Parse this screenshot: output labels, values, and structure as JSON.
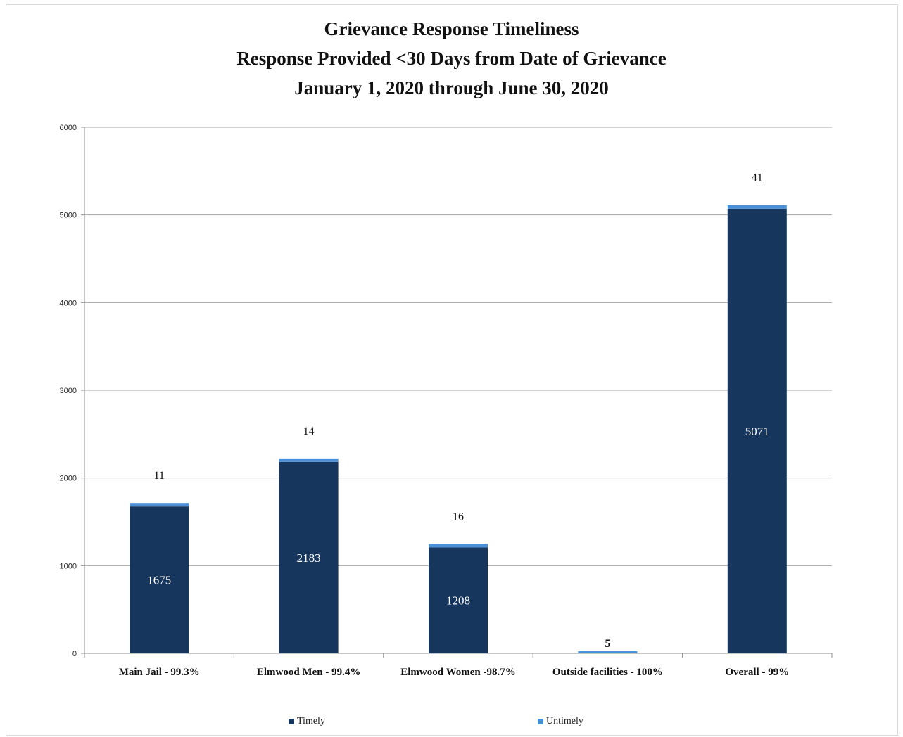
{
  "chart_data": {
    "type": "bar",
    "stacked": true,
    "title_lines": [
      "Grievance Response Timeliness",
      "Response Provided <30 Days from Date of Grievance",
      "January 1, 2020 through June 30, 2020"
    ],
    "categories": [
      "Main Jail - 99.3%",
      "Elmwood Men - 99.4%",
      "Elmwood Women -98.7%",
      "Outside facilities - 100%",
      "Overall - 99%"
    ],
    "series": [
      {
        "name": "Timely",
        "color": "#17365d",
        "values": [
          1675,
          2183,
          1208,
          5,
          5071
        ]
      },
      {
        "name": "Untimely",
        "color": "#4a90d9",
        "values": [
          11,
          14,
          16,
          0,
          41
        ]
      }
    ],
    "data_labels": {
      "timely": [
        "1675",
        "2183",
        "1208",
        "5",
        "5071"
      ],
      "untimely": [
        "11",
        "14",
        "16",
        "",
        "41"
      ]
    },
    "ylim": [
      0,
      6000
    ],
    "yticks": [
      0,
      1000,
      2000,
      3000,
      4000,
      5000,
      6000
    ],
    "ytick_labels": [
      "0",
      "1000",
      "2000",
      "3000",
      "4000",
      "5000",
      "6000"
    ],
    "grid": true,
    "legend_position": "bottom"
  }
}
